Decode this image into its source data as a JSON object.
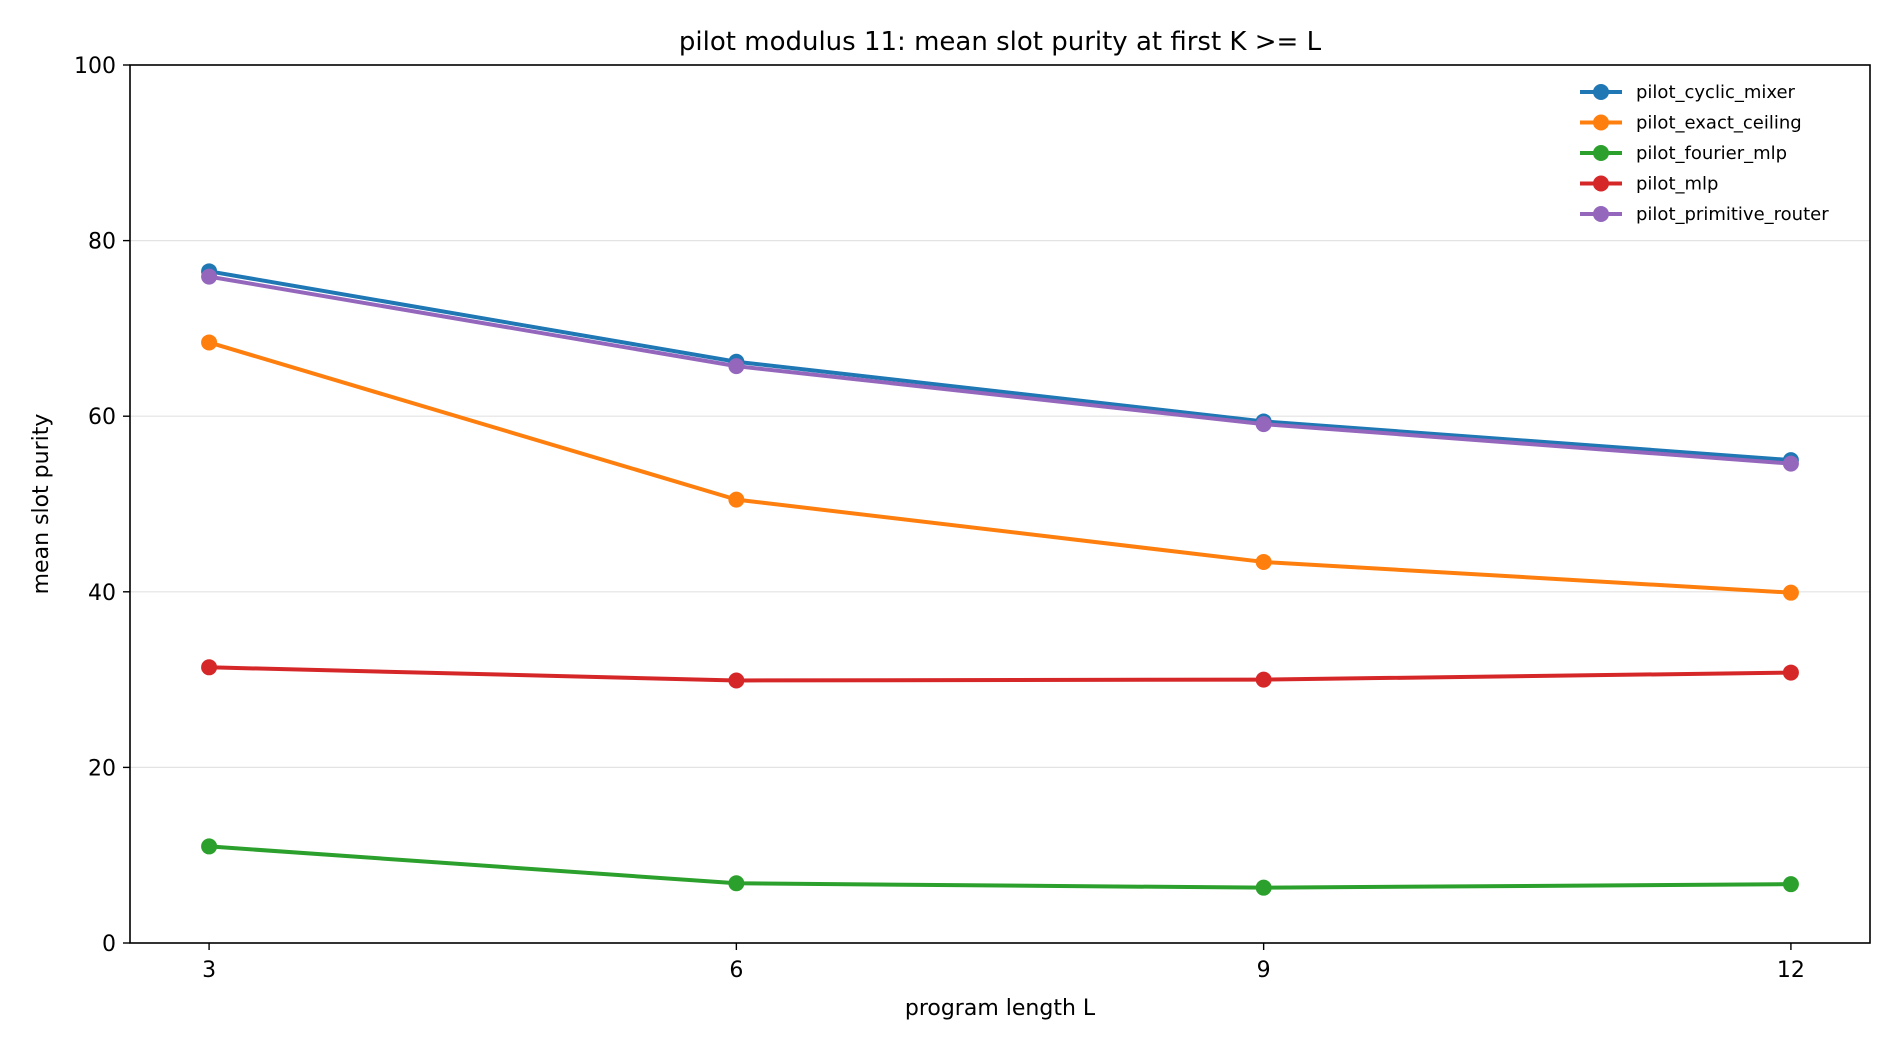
{
  "chart_data": {
    "type": "line",
    "title": "pilot modulus 11: mean slot purity at first K >= L",
    "xlabel": "program length L",
    "ylabel": "mean slot purity",
    "x": [
      3,
      6,
      9,
      12
    ],
    "xticks": [
      "3",
      "6",
      "9",
      "12"
    ],
    "xlim": [
      2.55,
      12.45
    ],
    "ylim": [
      0,
      100
    ],
    "yticks": [
      "0",
      "20",
      "40",
      "60",
      "80",
      "100"
    ],
    "grid": "horizontal",
    "legend_position": "top-right",
    "series": [
      {
        "name": "pilot_cyclic_mixer",
        "color": "#1f77b4",
        "values": [
          76.5,
          66.2,
          59.4,
          55.0
        ]
      },
      {
        "name": "pilot_exact_ceiling",
        "color": "#ff7f0e",
        "values": [
          68.4,
          50.5,
          43.4,
          39.9
        ]
      },
      {
        "name": "pilot_fourier_mlp",
        "color": "#2ca02c",
        "values": [
          11.0,
          6.8,
          6.3,
          6.7
        ]
      },
      {
        "name": "pilot_mlp",
        "color": "#d62728",
        "values": [
          31.4,
          29.9,
          30.0,
          30.8
        ]
      },
      {
        "name": "pilot_primitive_router",
        "color": "#9467bd",
        "values": [
          75.9,
          65.7,
          59.1,
          54.6
        ]
      }
    ]
  }
}
